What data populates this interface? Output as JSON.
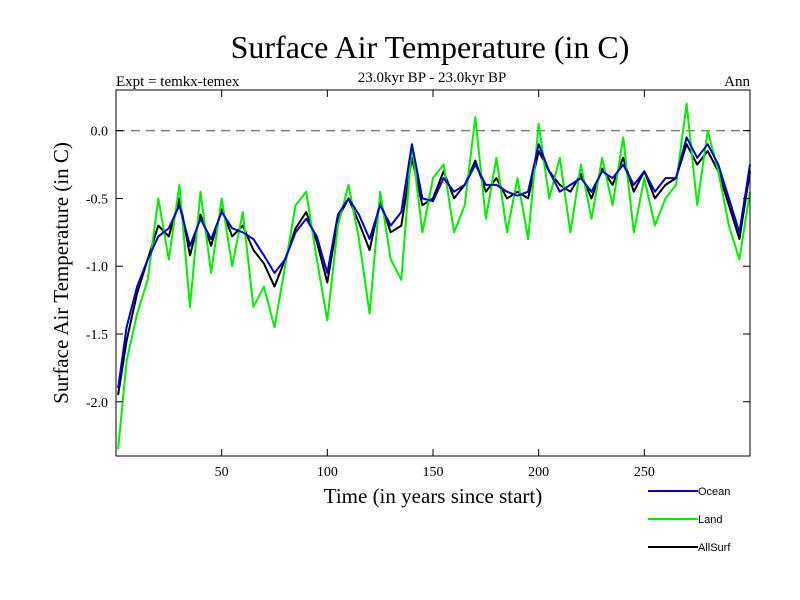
{
  "chart_data": {
    "type": "line",
    "title": "Surface Air Temperature (in C)",
    "subtitle": "23.0kyr BP - 23.0kyr BP",
    "expt_label": "Expt = temkx-temex",
    "period_label": "Ann",
    "xlabel": "Time (in years since start)",
    "ylabel": "Surface Air Temperature (in C)",
    "xlim": [
      0,
      300
    ],
    "ylim": [
      -2.4,
      0.3
    ],
    "xticks": [
      50,
      100,
      150,
      200,
      250
    ],
    "xtick_labels": [
      "50",
      "100",
      "150",
      "200",
      "250"
    ],
    "yticks": [
      0.0,
      -0.5,
      -1.0,
      -1.5,
      -2.0
    ],
    "ytick_labels": [
      "0.0",
      "-0.5",
      "-1.0",
      "-1.5",
      "-2.0"
    ],
    "reference_line": {
      "y": 0.0,
      "style": "dashed",
      "color": "#808080"
    },
    "legend_position": "bottom-right",
    "series": [
      {
        "name": "AllSurf",
        "color": "#000000",
        "x": [
          1,
          5,
          10,
          15,
          20,
          25,
          30,
          35,
          40,
          45,
          50,
          55,
          60,
          65,
          70,
          75,
          80,
          85,
          90,
          95,
          100,
          105,
          110,
          115,
          120,
          125,
          130,
          135,
          140,
          145,
          150,
          155,
          160,
          165,
          170,
          175,
          180,
          185,
          190,
          195,
          200,
          205,
          210,
          215,
          220,
          225,
          230,
          235,
          240,
          245,
          250,
          255,
          260,
          265,
          270,
          275,
          280,
          285,
          290,
          295,
          300
        ],
        "values": [
          -1.95,
          -1.55,
          -1.2,
          -0.95,
          -0.7,
          -0.78,
          -0.5,
          -0.92,
          -0.62,
          -0.85,
          -0.58,
          -0.78,
          -0.7,
          -0.88,
          -0.98,
          -1.15,
          -0.95,
          -0.72,
          -0.6,
          -0.82,
          -1.12,
          -0.65,
          -0.5,
          -0.68,
          -0.88,
          -0.52,
          -0.75,
          -0.7,
          -0.2,
          -0.55,
          -0.5,
          -0.3,
          -0.5,
          -0.4,
          -0.22,
          -0.45,
          -0.35,
          -0.5,
          -0.45,
          -0.5,
          -0.15,
          -0.3,
          -0.4,
          -0.45,
          -0.32,
          -0.5,
          -0.28,
          -0.4,
          -0.2,
          -0.45,
          -0.3,
          -0.5,
          -0.4,
          -0.35,
          -0.1,
          -0.25,
          -0.15,
          -0.3,
          -0.55,
          -0.8,
          -0.3
        ]
      },
      {
        "name": "Land",
        "color": "#00ee00",
        "x": [
          1,
          5,
          10,
          15,
          20,
          25,
          30,
          35,
          40,
          45,
          50,
          55,
          60,
          65,
          70,
          75,
          80,
          85,
          90,
          95,
          100,
          105,
          110,
          115,
          120,
          125,
          130,
          135,
          140,
          145,
          150,
          155,
          160,
          165,
          170,
          175,
          180,
          185,
          190,
          195,
          200,
          205,
          210,
          215,
          220,
          225,
          230,
          235,
          240,
          245,
          250,
          255,
          260,
          265,
          270,
          275,
          280,
          285,
          290,
          295,
          300
        ],
        "values": [
          -2.35,
          -1.7,
          -1.35,
          -1.1,
          -0.5,
          -0.95,
          -0.4,
          -1.3,
          -0.45,
          -1.05,
          -0.5,
          -1.0,
          -0.6,
          -1.3,
          -1.15,
          -1.45,
          -1.0,
          -0.55,
          -0.45,
          -0.95,
          -1.4,
          -0.7,
          -0.4,
          -0.8,
          -1.35,
          -0.45,
          -0.95,
          -1.1,
          -0.1,
          -0.75,
          -0.35,
          -0.25,
          -0.75,
          -0.55,
          0.1,
          -0.65,
          -0.2,
          -0.75,
          -0.35,
          -0.8,
          0.05,
          -0.5,
          -0.2,
          -0.75,
          -0.25,
          -0.65,
          -0.2,
          -0.55,
          -0.05,
          -0.75,
          -0.35,
          -0.7,
          -0.5,
          -0.4,
          0.2,
          -0.55,
          0.0,
          -0.3,
          -0.7,
          -0.95,
          -0.45
        ]
      },
      {
        "name": "Ocean",
        "color": "#0000cc",
        "x": [
          1,
          5,
          10,
          15,
          20,
          25,
          30,
          35,
          40,
          45,
          50,
          55,
          60,
          65,
          70,
          75,
          80,
          85,
          90,
          95,
          100,
          105,
          110,
          115,
          120,
          125,
          130,
          135,
          140,
          145,
          150,
          155,
          160,
          165,
          170,
          175,
          180,
          185,
          190,
          195,
          200,
          205,
          210,
          215,
          220,
          225,
          230,
          235,
          240,
          245,
          250,
          255,
          260,
          265,
          270,
          275,
          280,
          285,
          290,
          295,
          300
        ],
        "values": [
          -1.9,
          -1.45,
          -1.15,
          -0.95,
          -0.78,
          -0.72,
          -0.55,
          -0.85,
          -0.65,
          -0.8,
          -0.6,
          -0.72,
          -0.75,
          -0.8,
          -0.92,
          -1.05,
          -0.95,
          -0.75,
          -0.65,
          -0.78,
          -1.05,
          -0.62,
          -0.5,
          -0.62,
          -0.8,
          -0.55,
          -0.7,
          -0.6,
          -0.1,
          -0.5,
          -0.52,
          -0.35,
          -0.45,
          -0.4,
          -0.25,
          -0.4,
          -0.4,
          -0.45,
          -0.48,
          -0.45,
          -0.1,
          -0.3,
          -0.45,
          -0.4,
          -0.35,
          -0.45,
          -0.3,
          -0.35,
          -0.25,
          -0.4,
          -0.3,
          -0.45,
          -0.35,
          -0.35,
          -0.05,
          -0.2,
          -0.1,
          -0.25,
          -0.5,
          -0.75,
          -0.25
        ]
      }
    ]
  },
  "legend": {
    "items": [
      {
        "label": "Ocean",
        "color": "#0000cc"
      },
      {
        "label": "Land",
        "color": "#00ee00"
      },
      {
        "label": "AllSurf",
        "color": "#000000"
      }
    ]
  }
}
